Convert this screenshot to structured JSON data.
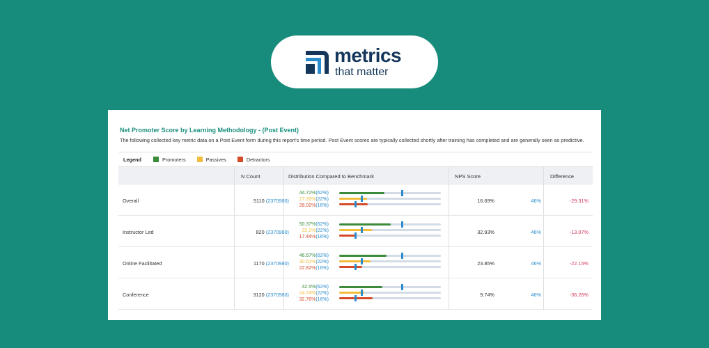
{
  "brand": {
    "line1": "metrics",
    "line2": "that matter",
    "logo_icon": "metrics-logo-icon"
  },
  "report": {
    "title": "Net Promoter Score by Learning Methodology - (Post Event)",
    "description": "The following collected key metric data on a Post Event form during this report's time period. Post Event scores are typically collected shortly after training has completed and are generally seen as predictive."
  },
  "legend": {
    "label": "Legend",
    "items": [
      {
        "label": "Promoters",
        "color": "#3b8b3a"
      },
      {
        "label": "Passives",
        "color": "#f2bc3c"
      },
      {
        "label": "Detractors",
        "color": "#d54a28"
      }
    ]
  },
  "table": {
    "headers": {
      "n_count": "N Count",
      "distribution": "Distribution Compared to Benchmark",
      "nps": "NPS Score",
      "difference": "Difference"
    },
    "rows": [
      {
        "name": "Overall",
        "n": "5110",
        "n_bench": "(2370980)",
        "promoters": {
          "pct": "44.72%",
          "bench": "(62%)",
          "value": 0.4472,
          "bench_value": 0.62
        },
        "passives": {
          "pct": "27.26%",
          "bench": "(22%)",
          "value": 0.2726,
          "bench_value": 0.22
        },
        "detractors": {
          "pct": "28.02%",
          "bench": "(16%)",
          "value": 0.2802,
          "bench_value": 0.16
        },
        "nps": "16.69%",
        "bench_nps": "46%",
        "diff": "-29.31%"
      },
      {
        "name": "Instructor Led",
        "n": "820",
        "n_bench": "(2370980)",
        "promoters": {
          "pct": "50.37%",
          "bench": "(62%)",
          "value": 0.5037,
          "bench_value": 0.62
        },
        "passives": {
          "pct": "32.2%",
          "bench": "(22%)",
          "value": 0.322,
          "bench_value": 0.22
        },
        "detractors": {
          "pct": "17.44%",
          "bench": "(16%)",
          "value": 0.1744,
          "bench_value": 0.16
        },
        "nps": "32.93%",
        "bench_nps": "46%",
        "diff": "-13.07%"
      },
      {
        "name": "Online Facilitated",
        "n": "1170",
        "n_bench": "(2370980)",
        "promoters": {
          "pct": "46.67%",
          "bench": "(62%)",
          "value": 0.4667,
          "bench_value": 0.62
        },
        "passives": {
          "pct": "30.51%",
          "bench": "(22%)",
          "value": 0.3051,
          "bench_value": 0.22
        },
        "detractors": {
          "pct": "22.82%",
          "bench": "(16%)",
          "value": 0.2282,
          "bench_value": 0.16
        },
        "nps": "23.85%",
        "bench_nps": "46%",
        "diff": "-22.15%"
      },
      {
        "name": "Conference",
        "n": "3120",
        "n_bench": "(2370980)",
        "promoters": {
          "pct": "42.5%",
          "bench": "(62%)",
          "value": 0.425,
          "bench_value": 0.62
        },
        "passives": {
          "pct": "24.74%",
          "bench": "(22%)",
          "value": 0.2474,
          "bench_value": 0.22
        },
        "detractors": {
          "pct": "32.76%",
          "bench": "(16%)",
          "value": 0.3276,
          "bench_value": 0.16
        },
        "nps": "9.74%",
        "bench_nps": "46%",
        "diff": "-36.26%"
      }
    ]
  },
  "colors": {
    "promoters": "#3b8b3a",
    "passives": "#f2bc3c",
    "detractors": "#d54a28",
    "benchmark": "#2a8ccc",
    "accent": "#1a8f7e",
    "negative": "#d23a5c",
    "background": "#188c7c"
  }
}
